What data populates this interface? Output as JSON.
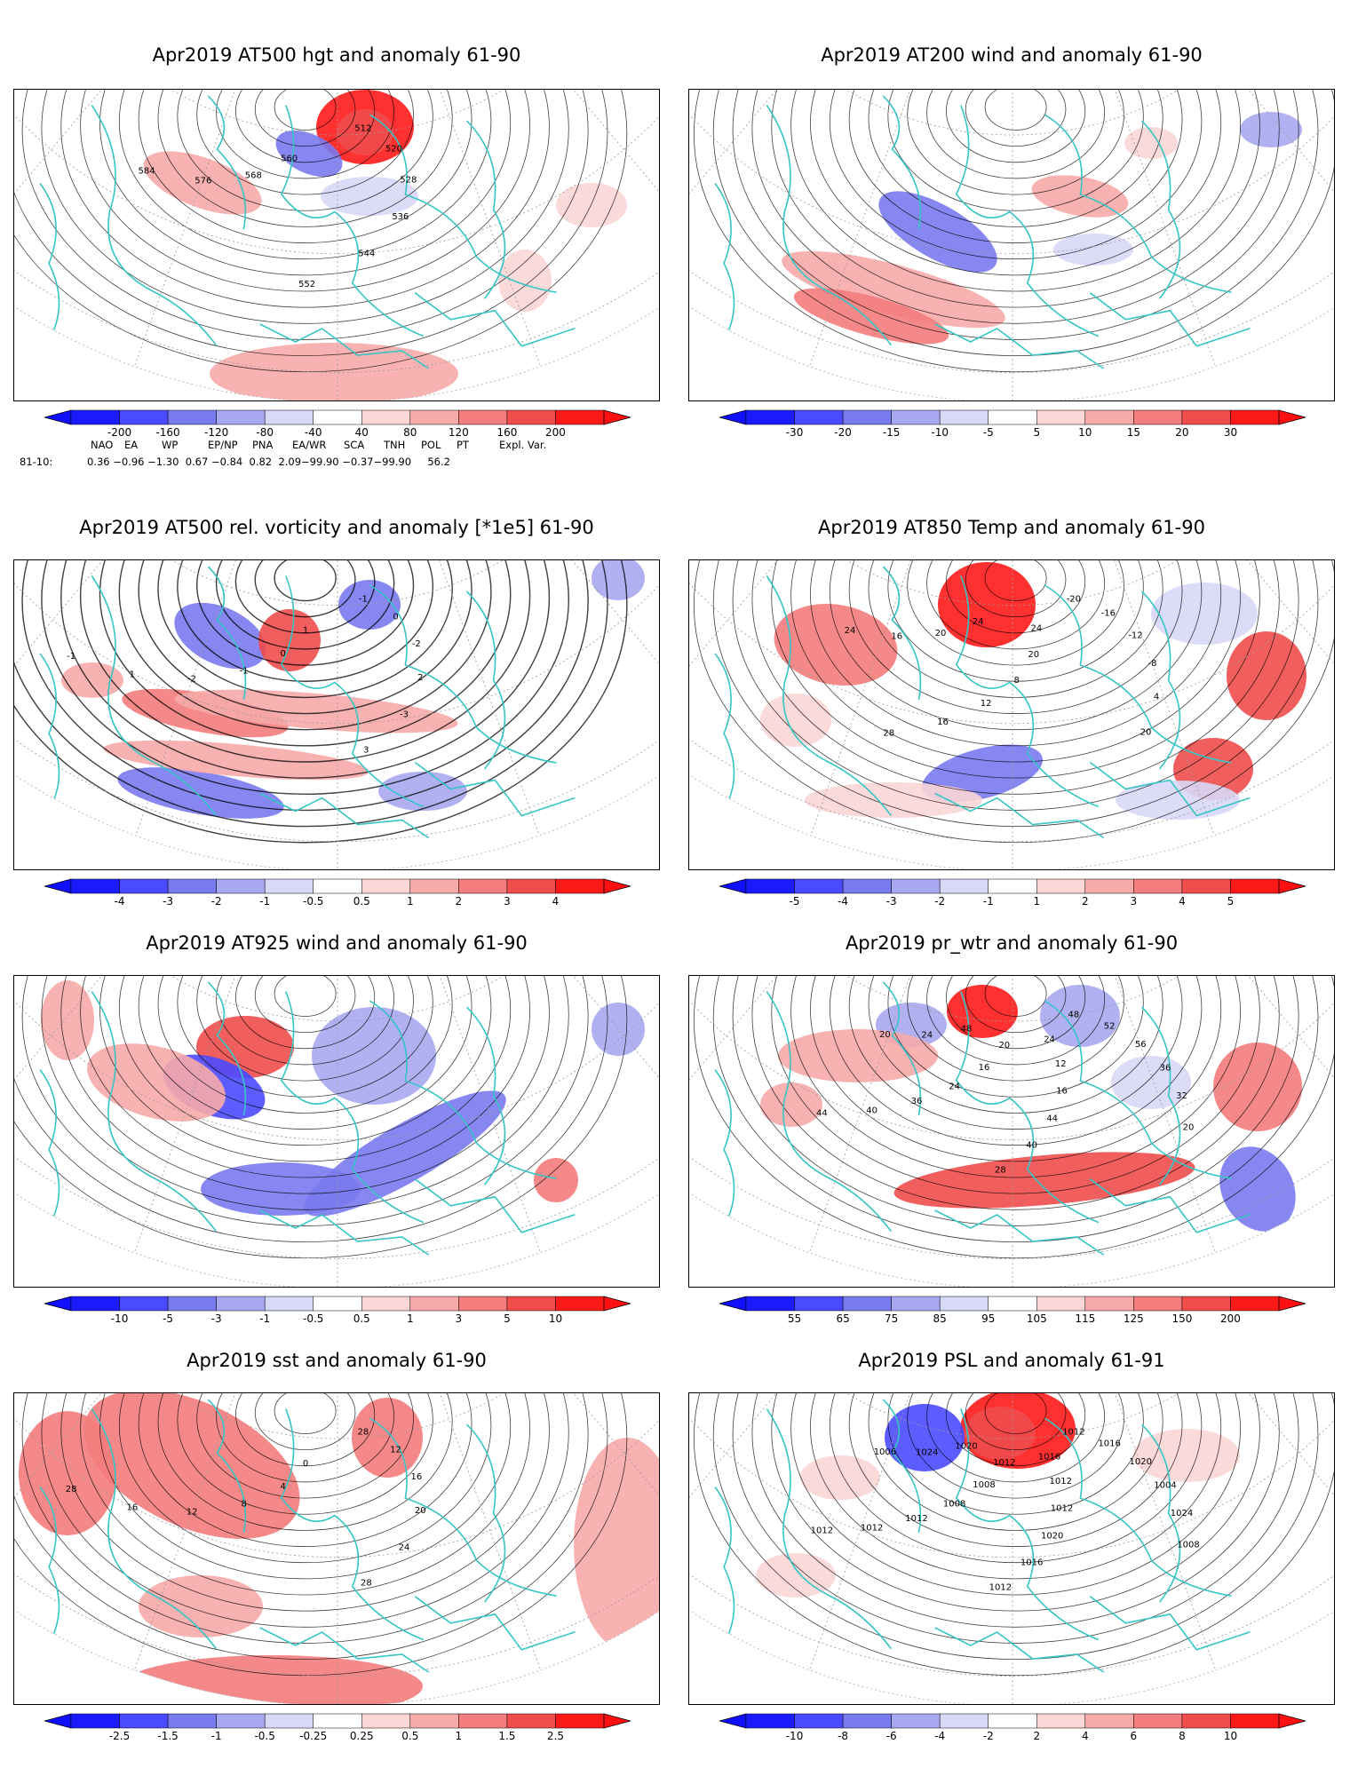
{
  "panels": [
    {
      "title": "Apr2019 AT500 hgt and anomaly 61-90",
      "ticks": [
        "-200",
        "-160",
        "-120",
        "-80",
        "-40",
        "40",
        "80",
        "120",
        "160",
        "200"
      ],
      "contour_labels": [
        "512",
        "520",
        "528",
        "536",
        "544",
        "552",
        "560",
        "568",
        "576",
        "584"
      ]
    },
    {
      "title": "Apr2019 AT200 wind and anomaly 61-90",
      "ticks": [
        "-30",
        "-20",
        "-15",
        "-10",
        "-5",
        "5",
        "10",
        "15",
        "20",
        "30"
      ],
      "contour_labels": []
    },
    {
      "title": "Apr2019 AT500 rel. vorticity and anomaly [*1e5] 61-90",
      "ticks": [
        "-4",
        "-3",
        "-2",
        "-1",
        "-0.5",
        "0.5",
        "1",
        "2",
        "3",
        "4"
      ],
      "contour_labels": [
        "-1",
        "0",
        "-2",
        "2",
        "-3",
        "3",
        "1",
        "0",
        "-1",
        "-2",
        "1",
        "-1"
      ]
    },
    {
      "title": "Apr2019 AT850 Temp and anomaly 61-90",
      "ticks": [
        "-5",
        "-4",
        "-3",
        "-2",
        "-1",
        "1",
        "2",
        "3",
        "4",
        "5"
      ],
      "contour_labels": [
        "-20",
        "-16",
        "-12",
        "-8",
        "4",
        "20",
        "24",
        "20",
        "8",
        "12",
        "16",
        "28",
        "24",
        "20",
        "16",
        "24"
      ]
    },
    {
      "title": "Apr2019 AT925 wind and anomaly 61-90",
      "ticks": [
        "-10",
        "-5",
        "-3",
        "-1",
        "-0.5",
        "0.5",
        "1",
        "3",
        "5",
        "10"
      ],
      "contour_labels": []
    },
    {
      "title": "Apr2019 pr_wtr and anomaly 61-90",
      "ticks": [
        "55",
        "65",
        "75",
        "85",
        "95",
        "105",
        "115",
        "125",
        "150",
        "200"
      ],
      "contour_labels": [
        "48",
        "52",
        "56",
        "36",
        "32",
        "20",
        "24",
        "12",
        "16",
        "44",
        "40",
        "28",
        "20",
        "16",
        "24",
        "36",
        "40",
        "44",
        "48",
        "24",
        "20"
      ]
    },
    {
      "title": "Apr2019 sst and anomaly 61-90",
      "ticks": [
        "-2.5",
        "-1.5",
        "-1",
        "-0.5",
        "-0.25",
        "0.25",
        "0.5",
        "1",
        "1.5",
        "2.5"
      ],
      "contour_labels": [
        "28",
        "12",
        "16",
        "20",
        "24",
        "28",
        "0",
        "4",
        "8",
        "12",
        "16",
        "28"
      ]
    },
    {
      "title": "Apr2019 PSL and anomaly 61-91",
      "ticks": [
        "-10",
        "-8",
        "-6",
        "-4",
        "-2",
        "2",
        "4",
        "6",
        "8",
        "10"
      ],
      "contour_labels": [
        "1012",
        "1016",
        "1020",
        "1004",
        "1024",
        "1008",
        "1016",
        "1012",
        "1012",
        "1020",
        "1016",
        "1012",
        "1012",
        "1008",
        "1008",
        "1012",
        "1012",
        "1012",
        "1020",
        "1024",
        "1006"
      ]
    }
  ],
  "indices": {
    "headers": [
      "NAO",
      "EA",
      "WP",
      "EP/NP",
      "PNA",
      "EA/WR",
      "SCA",
      "TNH",
      "POL",
      "PT",
      "Expl. Var."
    ],
    "row_label": "81-10:",
    "values_text": "0.36 −0.96 −1.30  0.67 −0.84  0.82  2.09−99.90 −0.37−99.90     56.2"
  },
  "colors": {
    "coast": "#36c5c5",
    "blue_scale": [
      "#1a1aff",
      "#4a4aff",
      "#7a7aef",
      "#a8a8f0",
      "#d8d8f8"
    ],
    "red_scale": [
      "#fbd6d6",
      "#f7aaaa",
      "#f47c7c",
      "#f04c4c",
      "#ff1a1a"
    ]
  },
  "chart_data": [
    {
      "type": "heatmap",
      "title": "Apr2019 AT500 hgt and anomaly 61-90",
      "legend_levels": [
        -200,
        -160,
        -120,
        -80,
        -40,
        40,
        80,
        120,
        160,
        200
      ],
      "contour_levels": [
        512,
        520,
        528,
        536,
        544,
        552,
        560,
        568,
        576,
        584
      ]
    },
    {
      "type": "heatmap",
      "title": "Apr2019 AT200 wind and anomaly 61-90",
      "legend_levels": [
        -30,
        -20,
        -15,
        -10,
        -5,
        5,
        10,
        15,
        20,
        30
      ]
    },
    {
      "type": "heatmap",
      "title": "Apr2019 AT500 rel. vorticity and anomaly [*1e5] 61-90",
      "legend_levels": [
        -4,
        -3,
        -2,
        -1,
        -0.5,
        0.5,
        1,
        2,
        3,
        4
      ]
    },
    {
      "type": "heatmap",
      "title": "Apr2019 AT850 Temp and anomaly 61-90",
      "legend_levels": [
        -5,
        -4,
        -3,
        -2,
        -1,
        1,
        2,
        3,
        4,
        5
      ]
    },
    {
      "type": "heatmap",
      "title": "Apr2019 AT925 wind and anomaly 61-90",
      "legend_levels": [
        -10,
        -5,
        -3,
        -1,
        -0.5,
        0.5,
        1,
        3,
        5,
        10
      ]
    },
    {
      "type": "heatmap",
      "title": "Apr2019 pr_wtr and anomaly 61-90",
      "legend_levels": [
        55,
        65,
        75,
        85,
        95,
        105,
        115,
        125,
        150,
        200
      ]
    },
    {
      "type": "heatmap",
      "title": "Apr2019 sst and anomaly 61-90",
      "legend_levels": [
        -2.5,
        -1.5,
        -1,
        -0.5,
        -0.25,
        0.25,
        0.5,
        1,
        1.5,
        2.5
      ]
    },
    {
      "type": "heatmap",
      "title": "Apr2019 PSL and anomaly 61-91",
      "legend_levels": [
        -10,
        -8,
        -6,
        -4,
        -2,
        2,
        4,
        6,
        8,
        10
      ]
    }
  ]
}
